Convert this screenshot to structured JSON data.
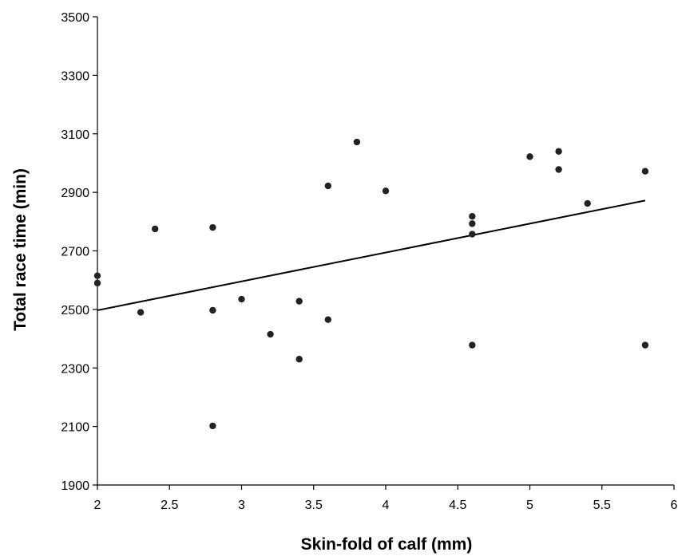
{
  "chart_data": {
    "type": "scatter",
    "xlabel": "Skin-fold of calf (mm)",
    "ylabel": "Total race time (min)",
    "xlim": [
      2,
      6
    ],
    "ylim": [
      1900,
      3500
    ],
    "xticks": [
      2,
      2.5,
      3,
      3.5,
      4,
      4.5,
      5,
      5.5,
      6
    ],
    "xtick_labels": [
      "2",
      "2.5",
      "3",
      "3.5",
      "4",
      "4.5",
      "5",
      "5.5",
      "6"
    ],
    "yticks": [
      1900,
      2100,
      2300,
      2500,
      2700,
      2900,
      3100,
      3300,
      3500
    ],
    "ytick_labels": [
      "1900",
      "2100",
      "2300",
      "2500",
      "2700",
      "2900",
      "3100",
      "3300",
      "3500"
    ],
    "grid": false,
    "series": [
      {
        "points": [
          [
            2.0,
            2615
          ],
          [
            2.0,
            2590
          ],
          [
            2.3,
            2490
          ],
          [
            2.4,
            2775
          ],
          [
            2.8,
            2780
          ],
          [
            2.8,
            2497
          ],
          [
            2.8,
            2102
          ],
          [
            3.0,
            2535
          ],
          [
            3.2,
            2415
          ],
          [
            3.4,
            2528
          ],
          [
            3.4,
            2330
          ],
          [
            3.6,
            2922
          ],
          [
            3.6,
            2465
          ],
          [
            3.8,
            3072
          ],
          [
            4.0,
            2905
          ],
          [
            4.6,
            2818
          ],
          [
            4.6,
            2793
          ],
          [
            4.6,
            2757
          ],
          [
            4.6,
            2378
          ],
          [
            5.0,
            3022
          ],
          [
            5.2,
            3040
          ],
          [
            5.2,
            2978
          ],
          [
            5.4,
            2862
          ],
          [
            5.8,
            2972
          ],
          [
            5.8,
            2378
          ]
        ]
      }
    ],
    "trendline": {
      "x": [
        2.0,
        5.8
      ],
      "y": [
        2497,
        2872
      ]
    },
    "colors": {
      "points": "#222222",
      "trendline": "#000000",
      "axes": "#000000"
    }
  }
}
